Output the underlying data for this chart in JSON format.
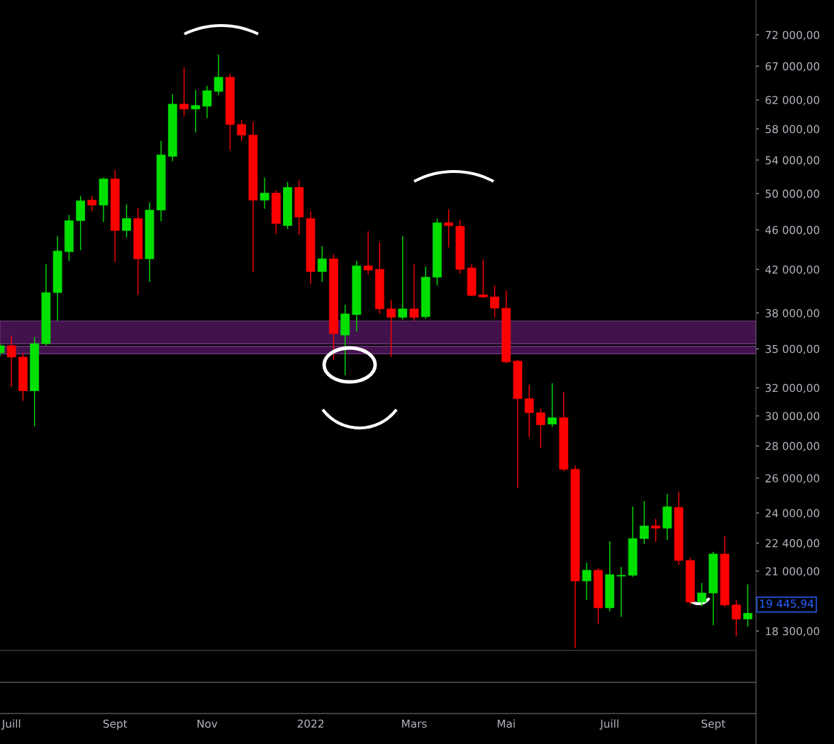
{
  "chart_data": {
    "type": "candlestick",
    "x": [
      "2021-06-28",
      "2021-07-05",
      "2021-07-12",
      "2021-07-19",
      "2021-07-26",
      "2021-08-02",
      "2021-08-09",
      "2021-08-16",
      "2021-08-23",
      "2021-08-30",
      "2021-09-06",
      "2021-09-13",
      "2021-09-20",
      "2021-09-27",
      "2021-10-04",
      "2021-10-11",
      "2021-10-18",
      "2021-10-25",
      "2021-11-01",
      "2021-11-08",
      "2021-11-15",
      "2021-11-22",
      "2021-11-29",
      "2021-12-06",
      "2021-12-13",
      "2021-12-20",
      "2021-12-27",
      "2022-01-03",
      "2022-01-10",
      "2022-01-17",
      "2022-01-24",
      "2022-01-31",
      "2022-02-07",
      "2022-02-14",
      "2022-02-21",
      "2022-02-28",
      "2022-03-07",
      "2022-03-14",
      "2022-03-21",
      "2022-03-28",
      "2022-04-04",
      "2022-04-11",
      "2022-04-18",
      "2022-04-25",
      "2022-05-02",
      "2022-05-09",
      "2022-05-16",
      "2022-05-23",
      "2022-05-30",
      "2022-06-06",
      "2022-06-13",
      "2022-06-20",
      "2022-06-27",
      "2022-07-04",
      "2022-07-11",
      "2022-07-18",
      "2022-07-25",
      "2022-08-01",
      "2022-08-08",
      "2022-08-15",
      "2022-08-22",
      "2022-08-29",
      "2022-09-05",
      "2022-09-12",
      "2022-09-19",
      "2022-09-26"
    ],
    "ohlc": [
      [
        34680,
        35400,
        34400,
        35250
      ],
      [
        35250,
        36060,
        32080,
        34340
      ],
      [
        34340,
        34680,
        31060,
        31780
      ],
      [
        31780,
        35950,
        29300,
        35420
      ],
      [
        35420,
        42490,
        35250,
        39820
      ],
      [
        39820,
        45340,
        37310,
        43810
      ],
      [
        43750,
        47600,
        42830,
        46980
      ],
      [
        46980,
        49730,
        43890,
        49170
      ],
      [
        49250,
        49730,
        47990,
        48690
      ],
      [
        48690,
        51870,
        46830,
        51710
      ],
      [
        51710,
        52810,
        42690,
        45930
      ],
      [
        45930,
        48770,
        45190,
        47210
      ],
      [
        47210,
        48380,
        39620,
        43040
      ],
      [
        43040,
        49010,
        40800,
        48140
      ],
      [
        48140,
        56440,
        46910,
        54640
      ],
      [
        54460,
        62830,
        53850,
        61410
      ],
      [
        61410,
        66820,
        59740,
        60720
      ],
      [
        60720,
        63440,
        57550,
        61210
      ],
      [
        61110,
        64060,
        59450,
        63330
      ],
      [
        63230,
        68810,
        62720,
        65320
      ],
      [
        65320,
        65850,
        55270,
        58590
      ],
      [
        58590,
        59260,
        56440,
        57180
      ],
      [
        57180,
        58970,
        41730,
        49250
      ],
      [
        49250,
        51870,
        48300,
        50050
      ],
      [
        50050,
        50380,
        45560,
        46680
      ],
      [
        46450,
        51370,
        46080,
        50710
      ],
      [
        50710,
        51540,
        45490,
        47370
      ],
      [
        47210,
        47990,
        40600,
        41800
      ],
      [
        41800,
        44320,
        40800,
        43040
      ],
      [
        43040,
        43460,
        34130,
        36240
      ],
      [
        36120,
        38730,
        32930,
        37920
      ],
      [
        37860,
        42830,
        36420,
        42350
      ],
      [
        42350,
        45850,
        41530,
        41940
      ],
      [
        42010,
        44680,
        37920,
        38360
      ],
      [
        38360,
        39170,
        34350,
        37620
      ],
      [
        37620,
        45340,
        37430,
        38360
      ],
      [
        38360,
        42490,
        37310,
        37620
      ],
      [
        37680,
        42280,
        37490,
        41260
      ],
      [
        41260,
        47210,
        40470,
        46750
      ],
      [
        46750,
        48220,
        44170,
        46450
      ],
      [
        46380,
        47060,
        41600,
        42010
      ],
      [
        42140,
        42490,
        39490,
        39560
      ],
      [
        39620,
        42970,
        39300,
        39430
      ],
      [
        39430,
        40470,
        37620,
        38420
      ],
      [
        38420,
        40010,
        33850,
        33960
      ],
      [
        34020,
        34130,
        25400,
        31210
      ],
      [
        31210,
        32240,
        28550,
        30220
      ],
      [
        30220,
        30510,
        27860,
        29390
      ],
      [
        29440,
        32340,
        29250,
        29870
      ],
      [
        29870,
        31670,
        26410,
        26540
      ],
      [
        26540,
        26750,
        17600,
        20530
      ],
      [
        20530,
        21420,
        19650,
        21040
      ],
      [
        21040,
        21140,
        18600,
        19300
      ],
      [
        19300,
        22490,
        19150,
        20830
      ],
      [
        20760,
        21210,
        18900,
        20800
      ],
      [
        20800,
        24350,
        20730,
        22630
      ],
      [
        22630,
        24670,
        22340,
        23300
      ],
      [
        23300,
        23690,
        22450,
        23180
      ],
      [
        23180,
        25070,
        22560,
        24350
      ],
      [
        24310,
        25190,
        21310,
        21520
      ],
      [
        21520,
        21660,
        19460,
        19560
      ],
      [
        19560,
        20430,
        19370,
        19970
      ],
      [
        19970,
        21950,
        18540,
        21840
      ],
      [
        21840,
        22740,
        19340,
        19430
      ],
      [
        19430,
        19650,
        18090,
        18810
      ],
      [
        18810,
        20370,
        18480,
        19060
      ]
    ],
    "colors": [
      "#00e000",
      "#ff0000",
      "#ff0000",
      "#00e000",
      "#00e000",
      "#00e000",
      "#00e000",
      "#00e000",
      "#ff0000",
      "#00e000",
      "#ff0000",
      "#00e000",
      "#ff0000",
      "#00e000",
      "#00e000",
      "#00e000",
      "#ff0000",
      "#00e000",
      "#00e000",
      "#00e000",
      "#ff0000",
      "#ff0000",
      "#ff0000",
      "#00e000",
      "#ff0000",
      "#00e000",
      "#ff0000",
      "#ff0000",
      "#00e000",
      "#ff0000",
      "#00e000",
      "#00e000",
      "#ff0000",
      "#ff0000",
      "#ff0000",
      "#00e000",
      "#ff0000",
      "#00e000",
      "#00e000",
      "#ff0000",
      "#ff0000",
      "#ff0000",
      "#ff0000",
      "#ff0000",
      "#ff0000",
      "#ff0000",
      "#ff0000",
      "#ff0000",
      "#00e000",
      "#ff0000",
      "#ff0000",
      "#00e000",
      "#ff0000",
      "#00e000",
      "#00e000",
      "#00e000",
      "#00e000",
      "#ff0000",
      "#00e000",
      "#ff0000",
      "#ff0000",
      "#00e000",
      "#00e000",
      "#ff0000",
      "#ff0000",
      "#00e000"
    ],
    "log": "y",
    "xlim": [
      "2021-06-28",
      "2022-10-01"
    ],
    "xticks": [
      {
        "value": "2021-07-05",
        "label": "Juill"
      },
      {
        "value": "2021-09-06",
        "label": "Sept"
      },
      {
        "value": "2021-11-01",
        "label": "Nov"
      },
      {
        "value": "2022-01-03",
        "label": "2022"
      },
      {
        "value": "2022-03-07",
        "label": "Mars"
      },
      {
        "value": "2022-05-02",
        "label": "Mai"
      },
      {
        "value": "2022-07-04",
        "label": "Juill"
      },
      {
        "value": "2022-09-05",
        "label": "Sept"
      }
    ],
    "ylim": [
      17500,
      78000
    ],
    "yticks": [
      {
        "value": 72000,
        "label": "72 000,00"
      },
      {
        "value": 67000,
        "label": "67 000,00"
      },
      {
        "value": 62000,
        "label": "62 000,00"
      },
      {
        "value": 58000,
        "label": "58 000,00"
      },
      {
        "value": 54000,
        "label": "54 000,00"
      },
      {
        "value": 50000,
        "label": "50 000,00"
      },
      {
        "value": 46000,
        "label": "46 000,00"
      },
      {
        "value": 42000,
        "label": "42 000,00"
      },
      {
        "value": 38000,
        "label": "38 000,00"
      },
      {
        "value": 35000,
        "label": "35 000,00"
      },
      {
        "value": 32000,
        "label": "32 000,00"
      },
      {
        "value": 30000,
        "label": "30 000,00"
      },
      {
        "value": 28000,
        "label": "28 000,00"
      },
      {
        "value": 26000,
        "label": "26 000,00"
      },
      {
        "value": 24000,
        "label": "24 000,00"
      },
      {
        "value": 22400,
        "label": "22 400,00"
      },
      {
        "value": 21000,
        "label": "21 000,00"
      },
      {
        "value": 18300,
        "label": "18 300,00"
      }
    ],
    "bands": [
      {
        "axis": "y",
        "from": 35400,
        "to": 37300,
        "color": "#4a1456"
      },
      {
        "axis": "y",
        "from": 34600,
        "to": 35200,
        "color": "#4a1456"
      }
    ],
    "annotations": [
      {
        "text": "19 445,94",
        "x": "2022-09-26",
        "y": 19445.94
      }
    ],
    "grid": false
  }
}
